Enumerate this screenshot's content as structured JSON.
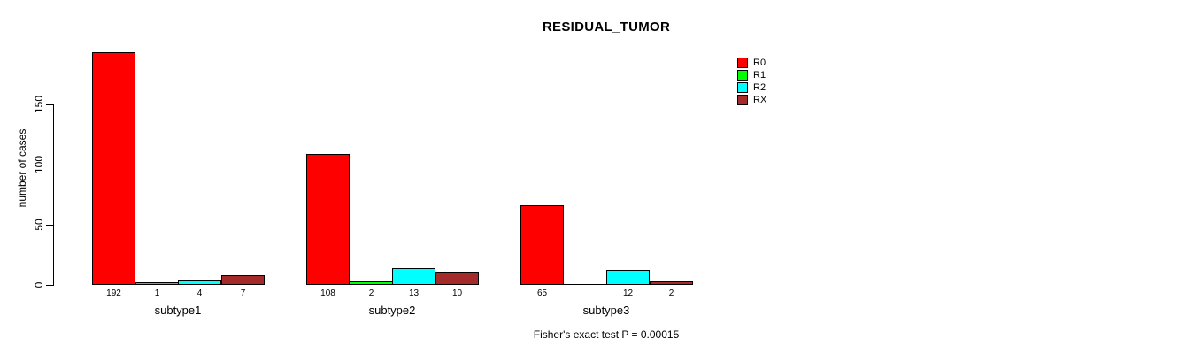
{
  "title": "RESIDUAL_TUMOR",
  "chart_data": {
    "type": "bar",
    "title": "RESIDUAL_TUMOR",
    "subtitle": "",
    "ylabel": "number of cases",
    "xlabel": "",
    "categories": [
      "subtype1",
      "subtype2",
      "subtype3"
    ],
    "series": [
      {
        "name": "R0",
        "color": "#FF0000",
        "values": [
          192,
          108,
          65
        ]
      },
      {
        "name": "R1",
        "color": "#00FF00",
        "values": [
          1,
          2,
          0
        ]
      },
      {
        "name": "R2",
        "color": "#00FFFF",
        "values": [
          4,
          13,
          12
        ]
      },
      {
        "name": "RX",
        "color": "#A52A2A",
        "values": [
          7,
          10,
          2
        ]
      }
    ],
    "yticks": [
      0,
      50,
      100,
      150
    ],
    "ylim": [
      0,
      200
    ],
    "grid": false,
    "legend_position": "top-right",
    "bar_value_labels_shown": true,
    "annotation": "Fisher's exact test P = 0.00015"
  },
  "colors": {
    "background": "#FFFFFF",
    "axis": "#000000",
    "bar_border": "#000000",
    "text": "#000000"
  }
}
